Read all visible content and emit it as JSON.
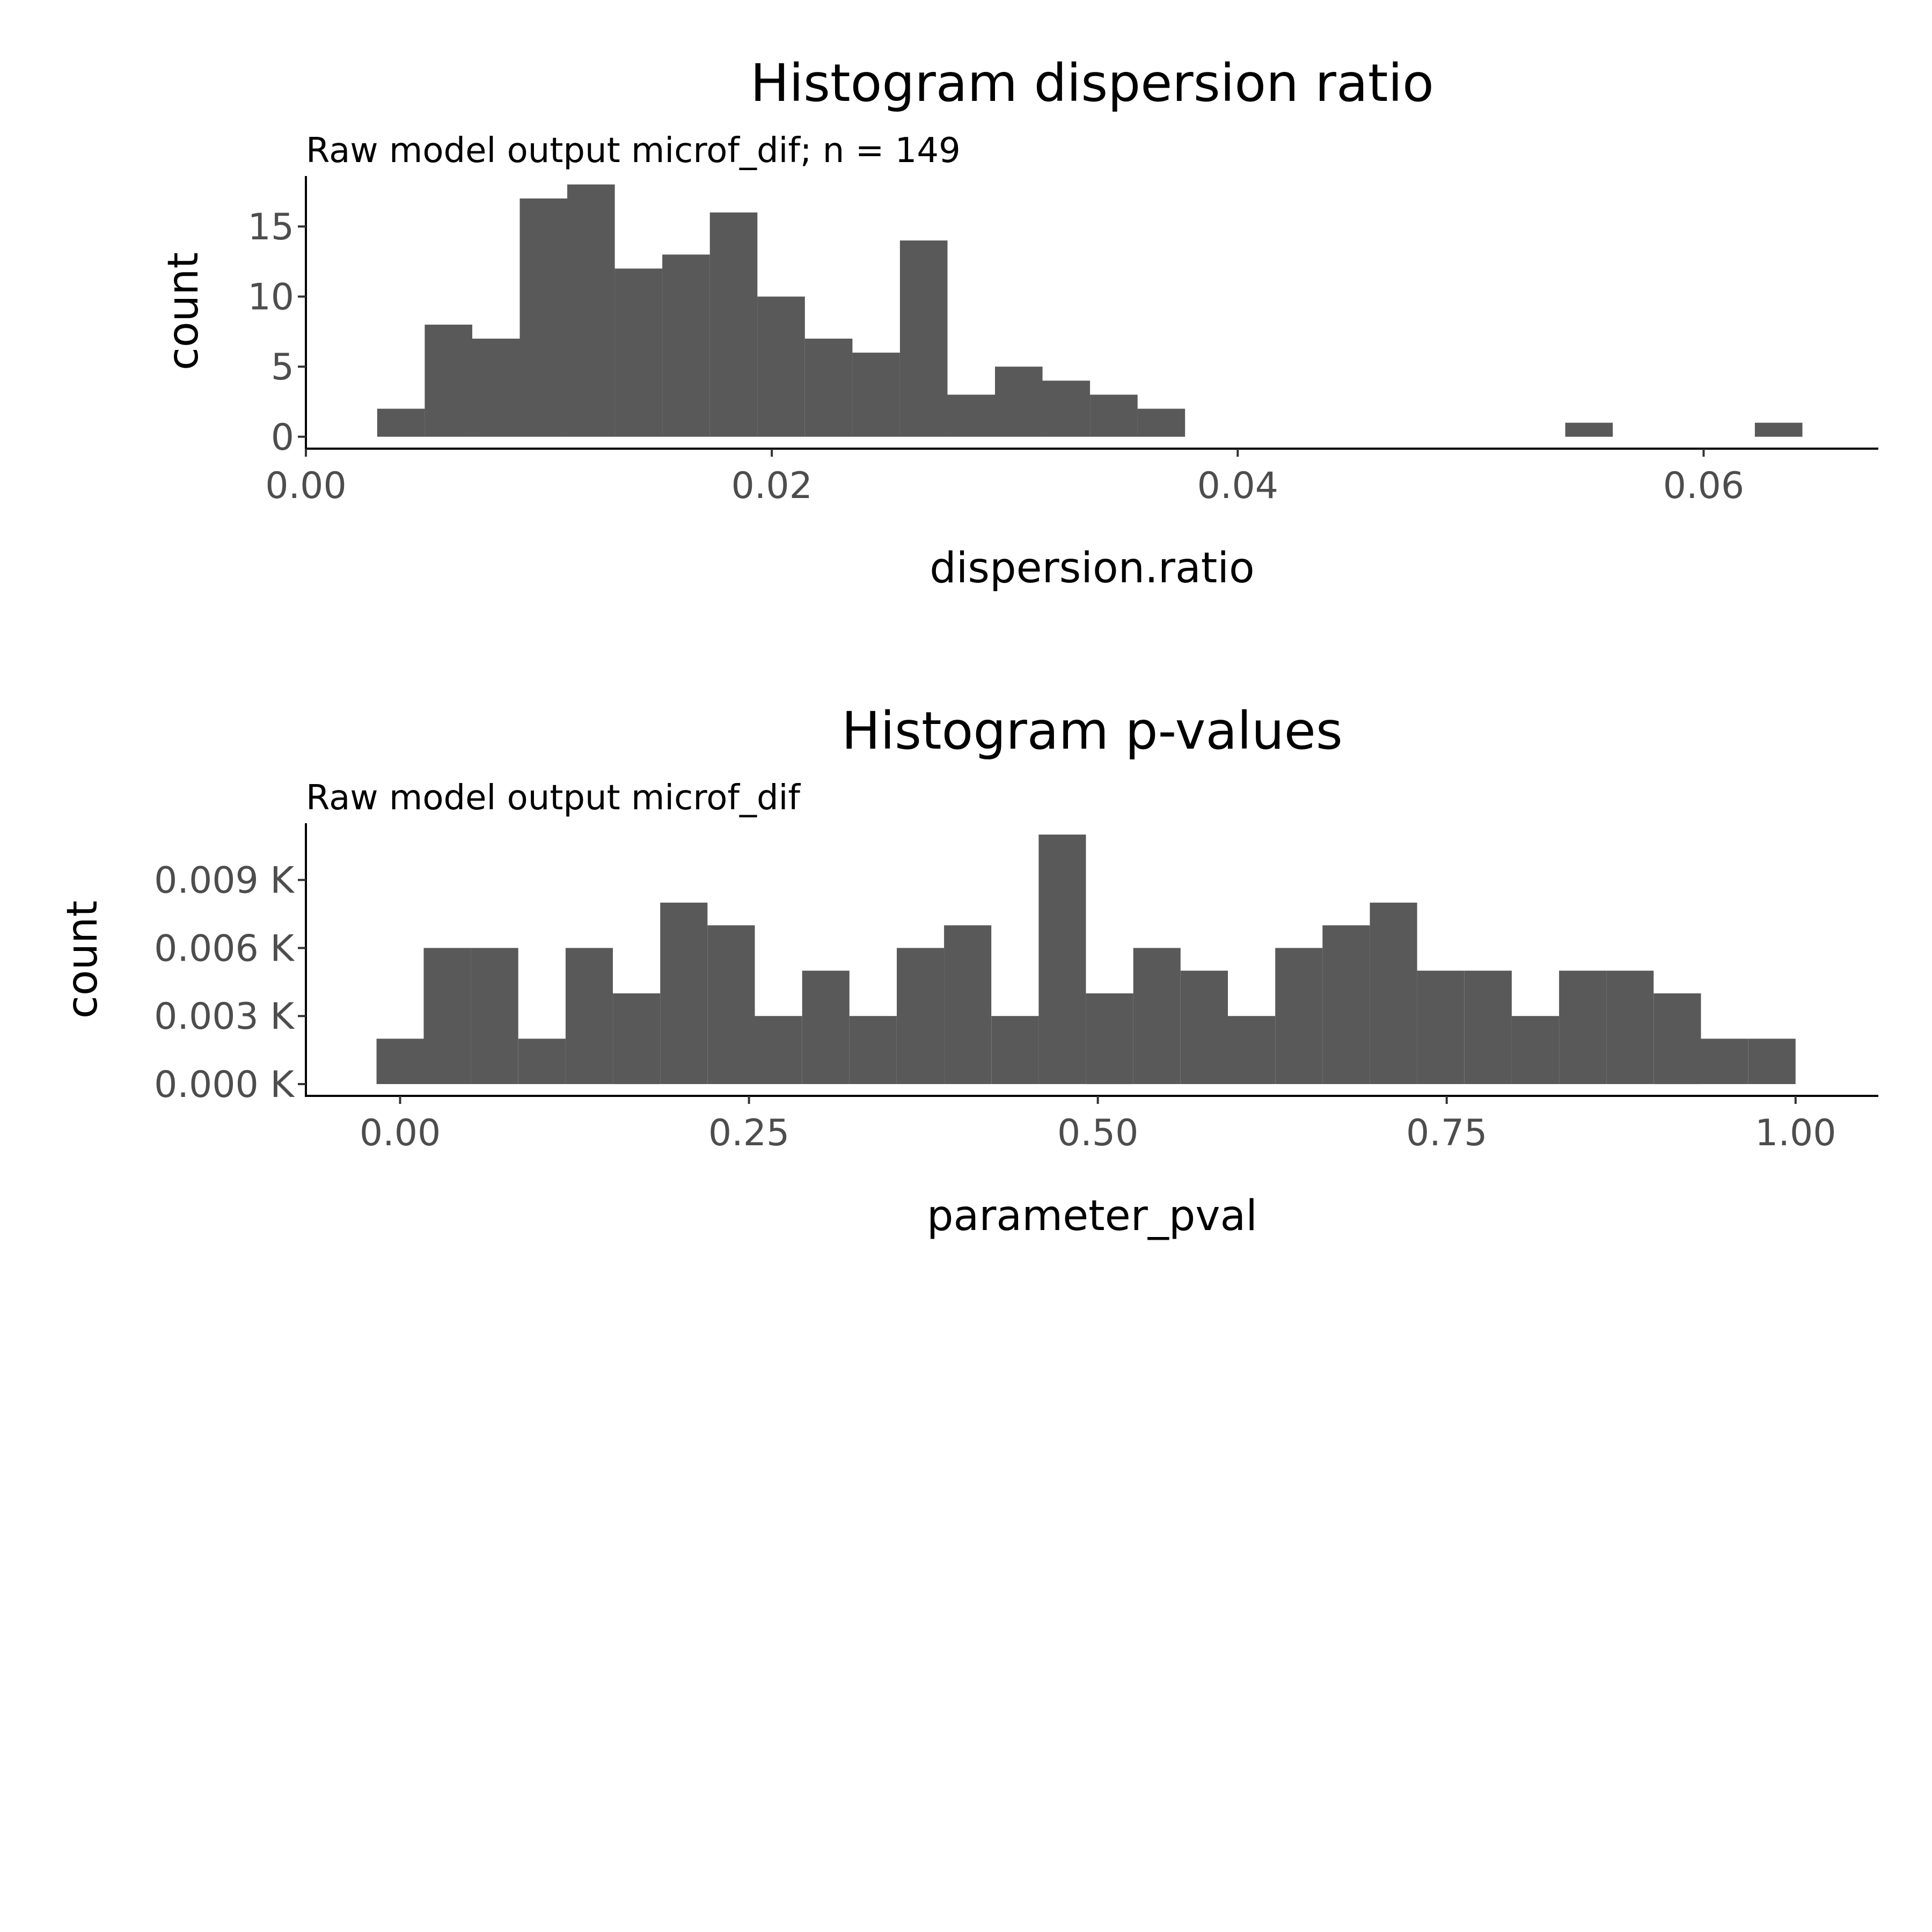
{
  "chart_data": [
    {
      "type": "bar",
      "title": "Histogram dispersion ratio",
      "subtitle": "Raw model output microf_dif; n = 149",
      "xlabel": "dispersion.ratio",
      "ylabel": "count",
      "bin_width": 0.00204,
      "bins": [
        {
          "x_start": 0.00306,
          "x_end": 0.0051,
          "count": 2
        },
        {
          "x_start": 0.0051,
          "x_end": 0.00714,
          "count": 8
        },
        {
          "x_start": 0.00714,
          "x_end": 0.00918,
          "count": 7
        },
        {
          "x_start": 0.00918,
          "x_end": 0.01122,
          "count": 17
        },
        {
          "x_start": 0.01122,
          "x_end": 0.01326,
          "count": 18
        },
        {
          "x_start": 0.01326,
          "x_end": 0.0153,
          "count": 12
        },
        {
          "x_start": 0.0153,
          "x_end": 0.01734,
          "count": 13
        },
        {
          "x_start": 0.01734,
          "x_end": 0.01938,
          "count": 16
        },
        {
          "x_start": 0.01938,
          "x_end": 0.02142,
          "count": 10
        },
        {
          "x_start": 0.02142,
          "x_end": 0.02346,
          "count": 7
        },
        {
          "x_start": 0.02346,
          "x_end": 0.0255,
          "count": 6
        },
        {
          "x_start": 0.0255,
          "x_end": 0.02754,
          "count": 14
        },
        {
          "x_start": 0.02754,
          "x_end": 0.02958,
          "count": 3
        },
        {
          "x_start": 0.02958,
          "x_end": 0.03162,
          "count": 5
        },
        {
          "x_start": 0.03162,
          "x_end": 0.03366,
          "count": 4
        },
        {
          "x_start": 0.03366,
          "x_end": 0.0357,
          "count": 3
        },
        {
          "x_start": 0.0357,
          "x_end": 0.03774,
          "count": 2
        },
        {
          "x_start": 0.05406,
          "x_end": 0.0561,
          "count": 1
        },
        {
          "x_start": 0.0622,
          "x_end": 0.06424,
          "count": 1
        }
      ],
      "xlim": [
        0.0,
        0.0675
      ],
      "ylim": [
        -0.85,
        18.6
      ],
      "x_ticks": [
        {
          "value": 0.0,
          "label": "0.00"
        },
        {
          "value": 0.02,
          "label": "0.02"
        },
        {
          "value": 0.04,
          "label": "0.04"
        },
        {
          "value": 0.06,
          "label": "0.06"
        }
      ],
      "y_ticks": [
        {
          "value": 0,
          "label": "0"
        },
        {
          "value": 5,
          "label": "5"
        },
        {
          "value": 10,
          "label": "10"
        },
        {
          "value": 15,
          "label": "15"
        }
      ],
      "bar_color": "#595959",
      "grid": false
    },
    {
      "type": "bar",
      "title": "Histogram p-values",
      "subtitle": "Raw model output microf_dif",
      "xlabel": "parameter_pval",
      "ylabel": "count",
      "bin_width": 0.0339,
      "bins": [
        {
          "x_start": -0.0169,
          "x_end": 0.0169,
          "count": 2
        },
        {
          "x_start": 0.0169,
          "x_end": 0.0508,
          "count": 6
        },
        {
          "x_start": 0.0508,
          "x_end": 0.0847,
          "count": 6
        },
        {
          "x_start": 0.0847,
          "x_end": 0.1186,
          "count": 2
        },
        {
          "x_start": 0.1186,
          "x_end": 0.1525,
          "count": 6
        },
        {
          "x_start": 0.1525,
          "x_end": 0.1864,
          "count": 4
        },
        {
          "x_start": 0.1864,
          "x_end": 0.2203,
          "count": 8
        },
        {
          "x_start": 0.2203,
          "x_end": 0.2542,
          "count": 7
        },
        {
          "x_start": 0.2542,
          "x_end": 0.2881,
          "count": 3
        },
        {
          "x_start": 0.2881,
          "x_end": 0.322,
          "count": 5
        },
        {
          "x_start": 0.322,
          "x_end": 0.3559,
          "count": 3
        },
        {
          "x_start": 0.3559,
          "x_end": 0.3898,
          "count": 6
        },
        {
          "x_start": 0.3898,
          "x_end": 0.4237,
          "count": 7
        },
        {
          "x_start": 0.4237,
          "x_end": 0.4576,
          "count": 3
        },
        {
          "x_start": 0.4576,
          "x_end": 0.4915,
          "count": 11
        },
        {
          "x_start": 0.4915,
          "x_end": 0.5254,
          "count": 4
        },
        {
          "x_start": 0.5254,
          "x_end": 0.5593,
          "count": 6
        },
        {
          "x_start": 0.5593,
          "x_end": 0.5932,
          "count": 5
        },
        {
          "x_start": 0.5932,
          "x_end": 0.6271,
          "count": 3
        },
        {
          "x_start": 0.6271,
          "x_end": 0.661,
          "count": 6
        },
        {
          "x_start": 0.661,
          "x_end": 0.6949,
          "count": 7
        },
        {
          "x_start": 0.6949,
          "x_end": 0.7288,
          "count": 8
        },
        {
          "x_start": 0.7288,
          "x_end": 0.7627,
          "count": 5
        },
        {
          "x_start": 0.7627,
          "x_end": 0.7966,
          "count": 5
        },
        {
          "x_start": 0.7966,
          "x_end": 0.8305,
          "count": 3
        },
        {
          "x_start": 0.8305,
          "x_end": 0.8644,
          "count": 5
        },
        {
          "x_start": 0.8644,
          "x_end": 0.8983,
          "count": 5
        },
        {
          "x_start": 0.8983,
          "x_end": 0.9322,
          "count": 4
        },
        {
          "x_start": 0.9322,
          "x_end": 0.9661,
          "count": 2
        },
        {
          "x_start": 0.9661,
          "x_end": 1.0,
          "count": 2
        }
      ],
      "xlim": [
        -0.0675,
        1.0593
      ],
      "ylim": [
        -0.52,
        11.5
      ],
      "x_ticks": [
        {
          "value": 0.0,
          "label": "0.00"
        },
        {
          "value": 0.25,
          "label": "0.25"
        },
        {
          "value": 0.5,
          "label": "0.50"
        },
        {
          "value": 0.75,
          "label": "0.75"
        },
        {
          "value": 1.0,
          "label": "1.00"
        }
      ],
      "y_ticks": [
        {
          "value": 0,
          "label": "0.000 K"
        },
        {
          "value": 3,
          "label": "0.003 K"
        },
        {
          "value": 6,
          "label": "0.006 K"
        },
        {
          "value": 9,
          "label": "0.009 K"
        }
      ],
      "bar_color": "#595959",
      "grid": false
    }
  ]
}
